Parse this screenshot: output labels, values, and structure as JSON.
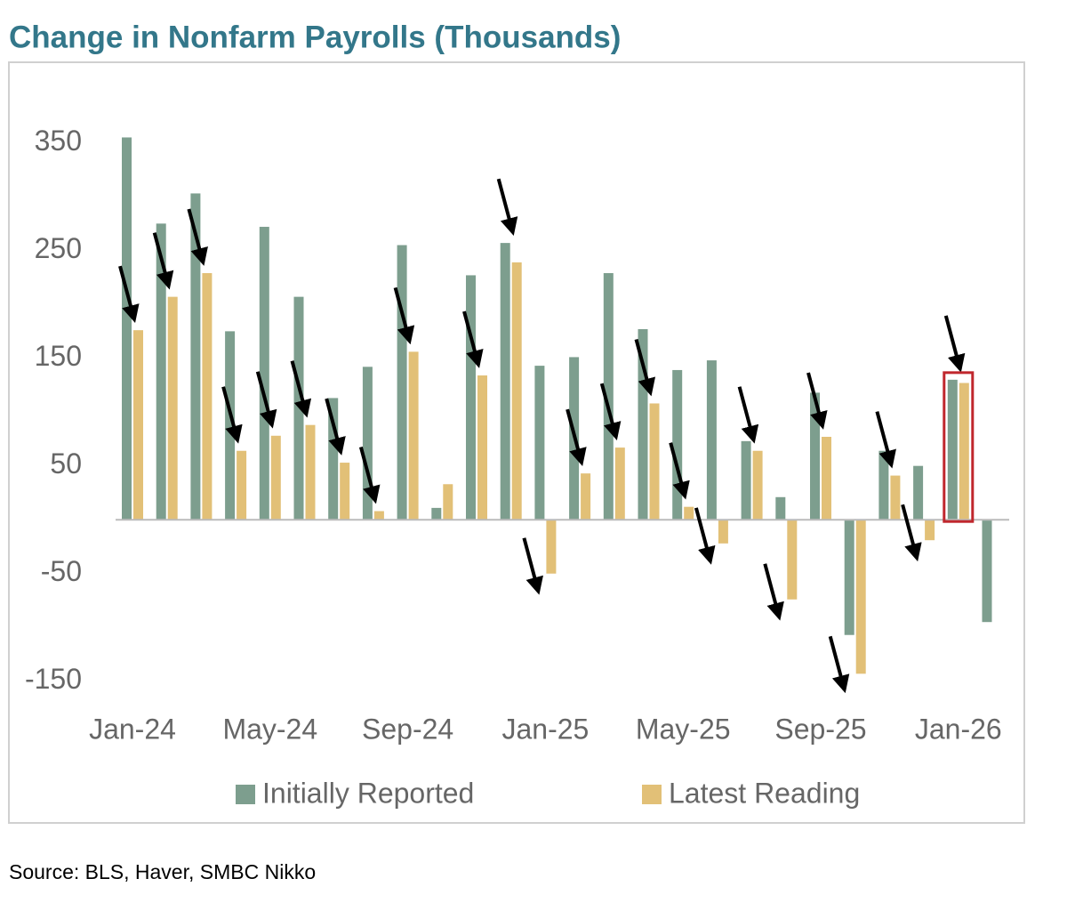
{
  "chart_data": {
    "type": "bar",
    "title": "Change in Nonfarm Payrolls (Thousands)",
    "source": "Source: BLS, Haver, SMBC Nikko",
    "categories": [
      "Jan-24",
      null,
      null,
      null,
      "May-24",
      null,
      null,
      null,
      "Sep-24",
      null,
      null,
      null,
      "Jan-25",
      null,
      null,
      null,
      "May-25",
      null,
      null,
      null,
      "Sep-25",
      null,
      null,
      null,
      "Jan-26",
      null
    ],
    "series": [
      {
        "name": "Initially Reported",
        "color": "#7d9e8e",
        "values": [
          355,
          275,
          303,
          175,
          272,
          207,
          113,
          142,
          255,
          11,
          227,
          257,
          143,
          151,
          229,
          177,
          139,
          148,
          73,
          21,
          118,
          -107,
          64,
          50,
          130,
          -95
        ]
      },
      {
        "name": "Latest Reading",
        "color": "#e2c077",
        "values": [
          176,
          207,
          229,
          64,
          78,
          88,
          53,
          8,
          156,
          33,
          134,
          239,
          -50,
          43,
          67,
          108,
          12,
          -22,
          64,
          -74,
          77,
          -143,
          41,
          -19,
          127,
          null
        ]
      }
    ],
    "ylim": [
      -170,
      400
    ],
    "yticks": [
      350,
      250,
      150,
      50,
      -50,
      -150
    ],
    "grid": false,
    "legend": "bottom"
  }
}
